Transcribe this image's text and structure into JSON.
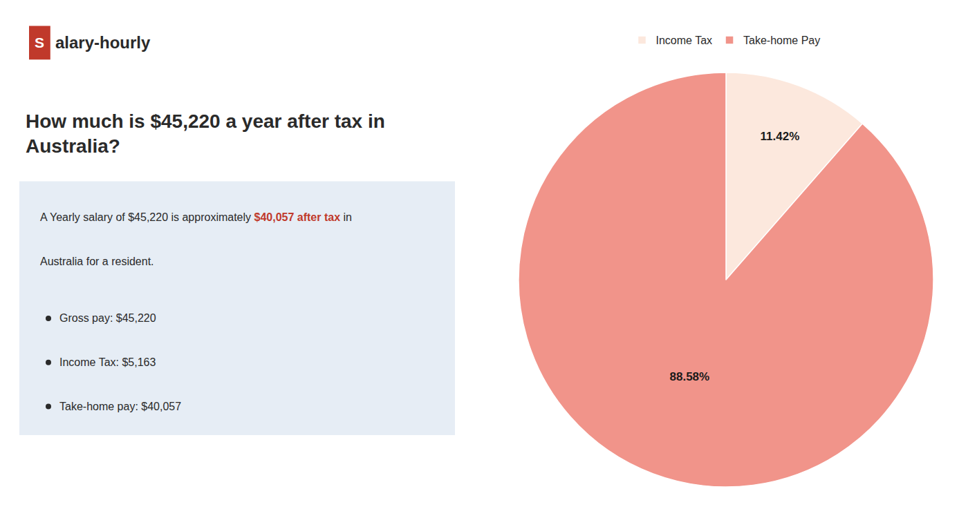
{
  "chart_data": {
    "type": "pie",
    "title": "How much is $45,220 a year after tax in\nAustralia?",
    "categories": [
      "Income Tax",
      "Take-home Pay"
    ],
    "values": [
      11.42,
      88.58
    ],
    "value_labels": [
      "11.42%",
      "88.58%"
    ],
    "data_labels": true,
    "colors": [
      "#fce8dd",
      "#f1948a"
    ],
    "legend": "top",
    "annotations": [
      {
        "text": "S",
        "color": "#c0392b"
      },
      {
        "text": "alary-hourly"
      },
      {
        "text": "A Yearly salary of $45,220 is approximately "
      },
      {
        "text": "$40,057 after tax",
        "color": "#c0392b"
      },
      {
        "text": " in"
      },
      {
        "text": "Australia for a resident."
      },
      {
        "text": "Gross pay: $45,220"
      },
      {
        "text": "Income Tax: $5,163"
      },
      {
        "text": "Take-home pay: $40,057"
      }
    ]
  }
}
